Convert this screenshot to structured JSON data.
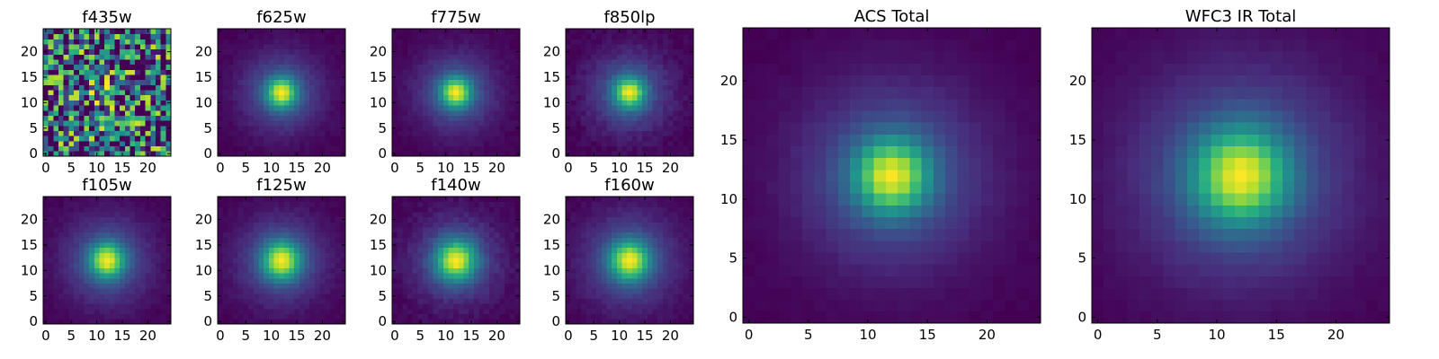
{
  "figure": {
    "colormap": "viridis",
    "colormap_stops": [
      "#440154",
      "#472d7b",
      "#3b528b",
      "#2c728e",
      "#21918c",
      "#28ae80",
      "#5ec962",
      "#addc30",
      "#fde725"
    ],
    "frame_color": "#000000"
  },
  "chart_data": [
    {
      "type": "heatmap",
      "title": "f435w",
      "grid_size": [
        25,
        25
      ],
      "x_range": [
        0,
        24
      ],
      "y_range": [
        0,
        24
      ],
      "x_ticks": [
        "0",
        "5",
        "10",
        "15",
        "20"
      ],
      "y_ticks": [
        "0",
        "5",
        "10",
        "15",
        "20"
      ],
      "peak": {
        "x": 12,
        "y": 12
      },
      "core_width": 1.6,
      "halo_width": 4.0,
      "halo_fraction": 0.0,
      "noise": 0.6,
      "background": 0.32
    },
    {
      "type": "heatmap",
      "title": "f625w",
      "grid_size": [
        25,
        25
      ],
      "x_range": [
        0,
        24
      ],
      "y_range": [
        0,
        24
      ],
      "x_ticks": [
        "0",
        "5",
        "10",
        "15",
        "20"
      ],
      "y_ticks": [
        "0",
        "5",
        "10",
        "15",
        "20"
      ],
      "peak": {
        "x": 12,
        "y": 12
      },
      "core_width": 2.0,
      "halo_width": 5.5,
      "halo_fraction": 0.3,
      "noise": 0.02,
      "background": 0.0
    },
    {
      "type": "heatmap",
      "title": "f775w",
      "grid_size": [
        25,
        25
      ],
      "x_range": [
        0,
        24
      ],
      "y_range": [
        0,
        24
      ],
      "x_ticks": [
        "0",
        "5",
        "10",
        "15",
        "20"
      ],
      "y_ticks": [
        "0",
        "5",
        "10",
        "15",
        "20"
      ],
      "peak": {
        "x": 12,
        "y": 12
      },
      "core_width": 2.0,
      "halo_width": 5.5,
      "halo_fraction": 0.3,
      "noise": 0.02,
      "background": 0.0
    },
    {
      "type": "heatmap",
      "title": "f850lp",
      "grid_size": [
        25,
        25
      ],
      "x_range": [
        0,
        24
      ],
      "y_range": [
        0,
        24
      ],
      "x_ticks": [
        "0",
        "5",
        "10",
        "15",
        "20"
      ],
      "y_ticks": [
        "0",
        "5",
        "10",
        "15",
        "20"
      ],
      "peak": {
        "x": 12,
        "y": 12
      },
      "core_width": 2.0,
      "halo_width": 5.5,
      "halo_fraction": 0.32,
      "noise": 0.03,
      "background": 0.0
    },
    {
      "type": "heatmap",
      "title": "f105w",
      "grid_size": [
        25,
        25
      ],
      "x_range": [
        0,
        24
      ],
      "y_range": [
        0,
        24
      ],
      "x_ticks": [
        "0",
        "5",
        "10",
        "15",
        "20"
      ],
      "y_ticks": [
        "0",
        "5",
        "10",
        "15",
        "20"
      ],
      "peak": {
        "x": 12,
        "y": 12
      },
      "core_width": 2.3,
      "halo_width": 6.0,
      "halo_fraction": 0.3,
      "noise": 0.02,
      "background": 0.0
    },
    {
      "type": "heatmap",
      "title": "f125w",
      "grid_size": [
        25,
        25
      ],
      "x_range": [
        0,
        24
      ],
      "y_range": [
        0,
        24
      ],
      "x_ticks": [
        "0",
        "5",
        "10",
        "15",
        "20"
      ],
      "y_ticks": [
        "0",
        "5",
        "10",
        "15",
        "20"
      ],
      "peak": {
        "x": 12,
        "y": 12
      },
      "core_width": 2.5,
      "halo_width": 6.0,
      "halo_fraction": 0.3,
      "noise": 0.02,
      "background": 0.0
    },
    {
      "type": "heatmap",
      "title": "f140w",
      "grid_size": [
        25,
        25
      ],
      "x_range": [
        0,
        24
      ],
      "y_range": [
        0,
        24
      ],
      "x_ticks": [
        "0",
        "5",
        "10",
        "15",
        "20"
      ],
      "y_ticks": [
        "0",
        "5",
        "10",
        "15",
        "20"
      ],
      "peak": {
        "x": 12,
        "y": 12
      },
      "core_width": 2.6,
      "halo_width": 6.0,
      "halo_fraction": 0.3,
      "noise": 0.03,
      "background": 0.0
    },
    {
      "type": "heatmap",
      "title": "f160w",
      "grid_size": [
        25,
        25
      ],
      "x_range": [
        0,
        24
      ],
      "y_range": [
        0,
        24
      ],
      "x_ticks": [
        "0",
        "5",
        "10",
        "15",
        "20"
      ],
      "y_ticks": [
        "0",
        "5",
        "10",
        "15",
        "20"
      ],
      "peak": {
        "x": 12,
        "y": 12
      },
      "core_width": 2.6,
      "halo_width": 6.5,
      "halo_fraction": 0.3,
      "noise": 0.02,
      "background": 0.0
    },
    {
      "type": "heatmap",
      "title": "ACS Total",
      "grid_size": [
        25,
        25
      ],
      "x_range": [
        0,
        24
      ],
      "y_range": [
        0,
        24
      ],
      "x_ticks": [
        "0",
        "5",
        "10",
        "15",
        "20"
      ],
      "y_ticks": [
        "0",
        "5",
        "10",
        "15",
        "20"
      ],
      "peak": {
        "x": 12,
        "y": 12
      },
      "core_width": 2.1,
      "halo_width": 5.5,
      "halo_fraction": 0.3,
      "noise": 0.01,
      "background": 0.0
    },
    {
      "type": "heatmap",
      "title": "WFC3 IR Total",
      "grid_size": [
        25,
        25
      ],
      "x_range": [
        0,
        24
      ],
      "y_range": [
        0,
        24
      ],
      "x_ticks": [
        "0",
        "5",
        "10",
        "15",
        "20"
      ],
      "y_ticks": [
        "0",
        "5",
        "10",
        "15",
        "20"
      ],
      "peak": {
        "x": 12,
        "y": 12
      },
      "core_width": 2.7,
      "halo_width": 6.5,
      "halo_fraction": 0.3,
      "noise": 0.01,
      "background": 0.0
    }
  ]
}
